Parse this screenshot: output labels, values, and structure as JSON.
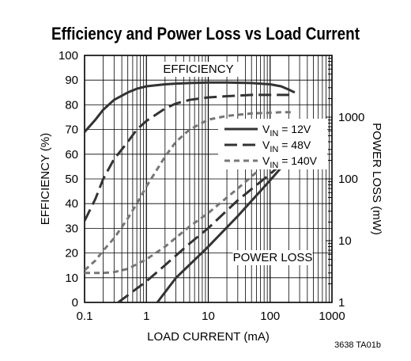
{
  "title": "Efficiency and Power Loss vs Load Current",
  "figure_code": "3638 TA01b",
  "chart_data": {
    "type": "line",
    "title": "Efficiency and Power Loss vs Load Current",
    "xlabel": "LOAD CURRENT (mA)",
    "ylabel_left": "EFFICIENCY (%)",
    "ylabel_right": "POWER LOSS (mW)",
    "x_scale": "log",
    "xlim": [
      0.1,
      1000
    ],
    "x_ticks": [
      {
        "v": 0.1,
        "label": "0.1"
      },
      {
        "v": 1,
        "label": "1"
      },
      {
        "v": 10,
        "label": "10"
      },
      {
        "v": 100,
        "label": "100"
      },
      {
        "v": 1000,
        "label": "1000"
      }
    ],
    "ylim_left": [
      0,
      100
    ],
    "y_ticks_left": [
      0,
      10,
      20,
      30,
      40,
      50,
      60,
      70,
      80,
      90,
      100
    ],
    "right_axis_scale": "log",
    "ylim_right": [
      1,
      10000
    ],
    "y_ticks_right": [
      {
        "v": 1,
        "label": "1"
      },
      {
        "v": 10,
        "label": "10"
      },
      {
        "v": 100,
        "label": "100"
      },
      {
        "v": 1000,
        "label": "1000"
      }
    ],
    "grid": true,
    "annotations": [
      "EFFICIENCY",
      "POWER LOSS"
    ],
    "legend_position": "right-middle",
    "series": [
      {
        "name": "VIN = 12V",
        "name_parts": [
          "V",
          "IN",
          " = 12V"
        ],
        "style": "solid",
        "color": "#333333",
        "efficiency": {
          "x": [
            0.1,
            0.15,
            0.2,
            0.3,
            0.5,
            0.7,
            1,
            2,
            3,
            5,
            10,
            20,
            50,
            100,
            150,
            200,
            250
          ],
          "y": [
            69,
            74,
            78,
            82,
            85,
            86.5,
            87.5,
            88.3,
            88.6,
            88.8,
            89,
            89,
            88.8,
            88.3,
            87.5,
            86.2,
            85
          ]
        },
        "power_loss": {
          "x": [
            1.5,
            3,
            10,
            30,
            100,
            200,
            250
          ],
          "y": [
            1,
            2.5,
            8,
            25,
            95,
            210,
            260
          ]
        }
      },
      {
        "name": "VIN = 48V",
        "name_parts": [
          "V",
          "IN",
          " = 48V"
        ],
        "style": "dash",
        "color": "#333333",
        "efficiency": {
          "x": [
            0.1,
            0.15,
            0.2,
            0.3,
            0.5,
            0.7,
            1,
            2,
            3,
            5,
            10,
            20,
            50,
            100,
            150,
            200,
            250
          ],
          "y": [
            33,
            42,
            50,
            58,
            65,
            70,
            73.5,
            78.5,
            80.5,
            82,
            83,
            83.5,
            84,
            84,
            84,
            84,
            84
          ]
        },
        "power_loss": {
          "x": [
            0.35,
            0.6,
            1,
            2,
            5,
            10,
            30,
            100,
            200,
            250
          ],
          "y": [
            1,
            1.5,
            2.2,
            4,
            9,
            16,
            45,
            120,
            220,
            270
          ]
        }
      },
      {
        "name": "VIN = 140V",
        "name_parts": [
          "V",
          "IN",
          " = 140V"
        ],
        "style": "short-dash",
        "color": "#777777",
        "efficiency": {
          "x": [
            0.1,
            0.15,
            0.2,
            0.3,
            0.5,
            0.7,
            1,
            2,
            3,
            5,
            10,
            20,
            50,
            100,
            150,
            200,
            250
          ],
          "y": [
            13,
            17,
            21,
            26,
            34,
            40,
            47,
            59,
            65,
            70,
            74,
            75.5,
            76.5,
            76.8,
            77,
            77,
            77
          ]
        },
        "power_loss": {
          "x": [
            0.1,
            0.2,
            0.3,
            0.5,
            1,
            2,
            5,
            10,
            30,
            100,
            200,
            250
          ],
          "y": [
            3,
            3,
            3.1,
            3.5,
            5,
            8,
            17,
            28,
            70,
            200,
            380,
            420
          ]
        }
      }
    ]
  }
}
